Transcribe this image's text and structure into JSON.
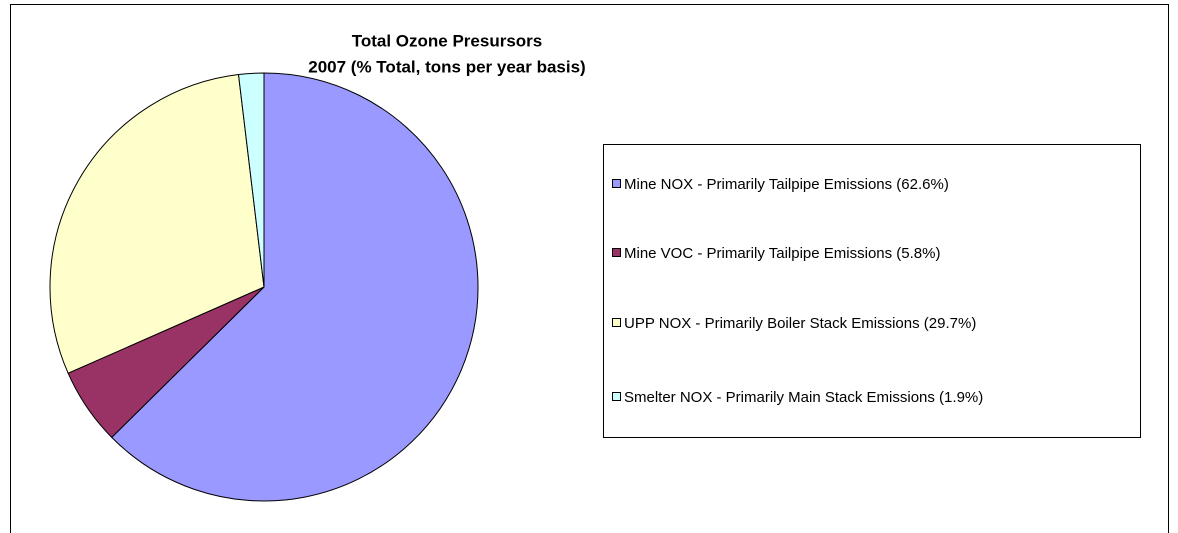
{
  "chart_data": {
    "type": "pie",
    "title": "Total Ozone Presursors",
    "subtitle": "2007 (% Total, tons per year basis)",
    "categories": [
      "Mine NOX - Primarily Tailpipe Emissions (62.6%)",
      "Mine VOC - Primarily Tailpipe Emissions (5.8%)",
      "UPP NOX - Primarily Boiler Stack Emissions (29.7%)",
      "Smelter NOX - Primarily Main Stack Emissions (1.9%)"
    ],
    "values": [
      62.6,
      5.8,
      29.7,
      1.9
    ],
    "colors": [
      "#9999ff",
      "#993366",
      "#ffffcc",
      "#ccffff"
    ],
    "legend": "right"
  }
}
